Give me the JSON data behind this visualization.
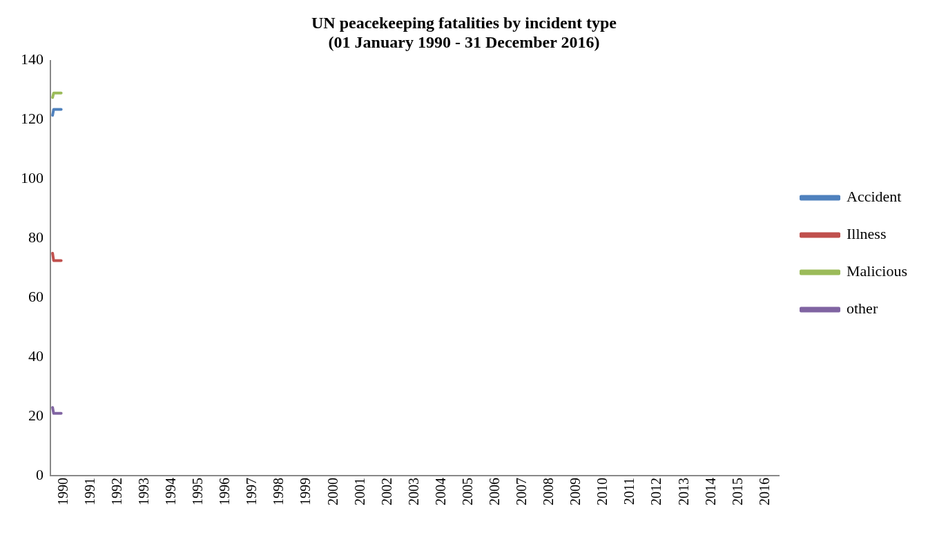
{
  "chart_data": {
    "type": "line",
    "title": "UN peacekeeping fatalities by incident type\n(01 January 1990 - 31 December 2016)",
    "series": [
      {
        "name": "Accident",
        "color": "#4f81bd",
        "x": [
          1989.58,
          1989.62,
          1989.9
        ],
        "values": [
          121.5,
          123.5,
          123.5
        ]
      },
      {
        "name": "Illness",
        "color": "#c0504d",
        "x": [
          1989.58,
          1989.62,
          1989.9
        ],
        "values": [
          75,
          72.5,
          72.5
        ]
      },
      {
        "name": "Malicious",
        "color": "#9bbb59",
        "x": [
          1989.58,
          1989.62,
          1989.9
        ],
        "values": [
          127.5,
          129,
          129
        ]
      },
      {
        "name": "other",
        "color": "#8064a2",
        "x": [
          1989.58,
          1989.62,
          1989.9
        ],
        "values": [
          23,
          21,
          21
        ]
      }
    ],
    "xlim": [
      1989.5,
      2016.5
    ],
    "xticks": [
      1990,
      1991,
      1992,
      1993,
      1994,
      1995,
      1996,
      1997,
      1998,
      1999,
      2000,
      2001,
      2002,
      2003,
      2004,
      2005,
      2006,
      2007,
      2008,
      2009,
      2010,
      2011,
      2012,
      2013,
      2014,
      2015,
      2016
    ],
    "ylim": [
      0,
      140
    ],
    "yticks": [
      0,
      20,
      40,
      60,
      80,
      100,
      120,
      140
    ],
    "grid": false,
    "legend": "right",
    "marker": "none",
    "line_style": "solid"
  }
}
